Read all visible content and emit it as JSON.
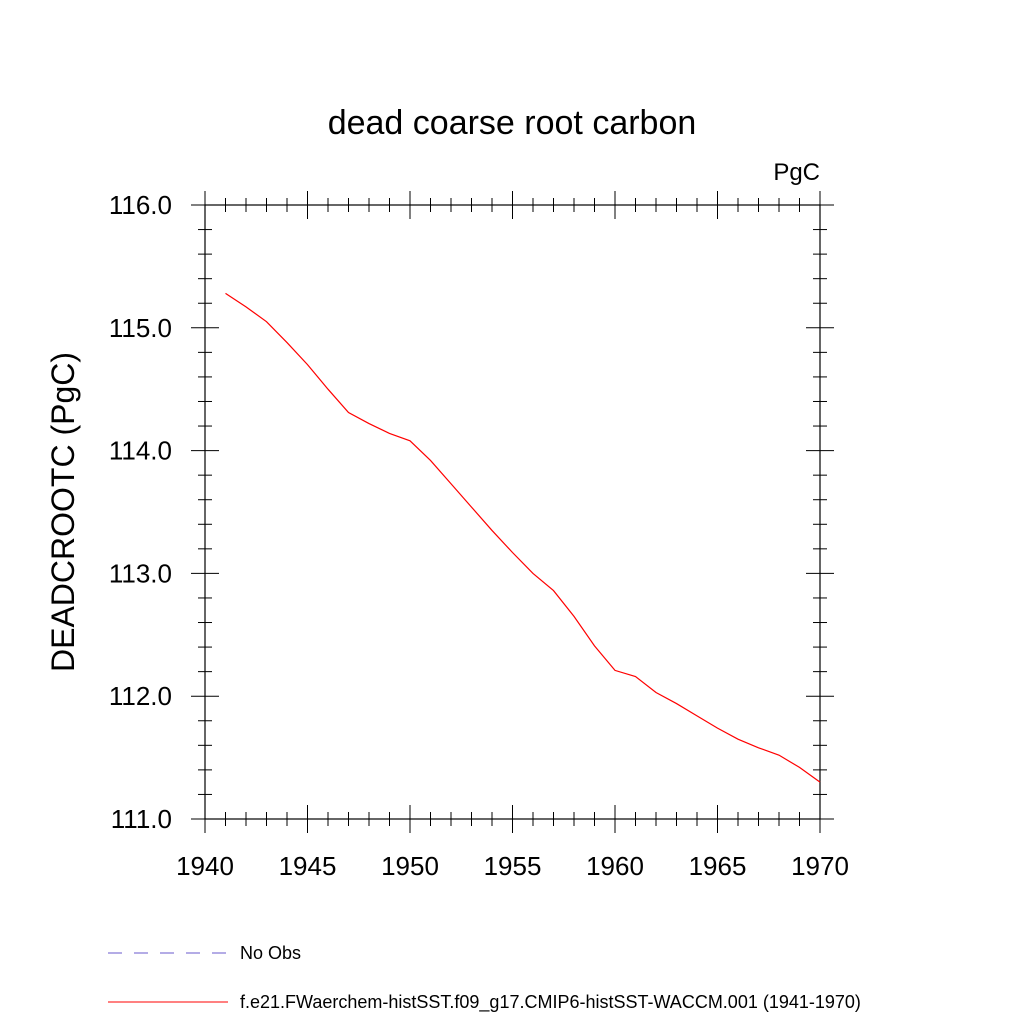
{
  "chart_data": {
    "type": "line",
    "title": "dead coarse root carbon",
    "units": "PgC",
    "xlabel": "",
    "ylabel": "DEADCROOTC  (PgC)",
    "xlim": [
      1940,
      1970
    ],
    "ylim": [
      111.0,
      116.0
    ],
    "x_ticks": [
      1940,
      1945,
      1950,
      1955,
      1960,
      1965,
      1970
    ],
    "x_tick_labels": [
      "1940",
      "1945",
      "1950",
      "1955",
      "1960",
      "1965",
      "1970"
    ],
    "y_ticks": [
      111.0,
      112.0,
      113.0,
      114.0,
      115.0,
      116.0
    ],
    "y_tick_labels": [
      "111.0",
      "112.0",
      "113.0",
      "114.0",
      "115.0",
      "116.0"
    ],
    "grid": false,
    "legend_position": "bottom",
    "series": [
      {
        "name": "f.e21.FWaerchem-histSST.f09_g17.CMIP6-histSST-WACCM.001 (1941-1970)",
        "color": "#ff0000",
        "style": "solid",
        "x": [
          1941,
          1942,
          1943,
          1944,
          1945,
          1946,
          1947,
          1948,
          1949,
          1950,
          1951,
          1952,
          1953,
          1954,
          1955,
          1956,
          1957,
          1958,
          1959,
          1960,
          1961,
          1962,
          1963,
          1964,
          1965,
          1966,
          1967,
          1968,
          1969,
          1970
        ],
        "y": [
          115.28,
          115.17,
          115.05,
          114.88,
          114.7,
          114.5,
          114.31,
          114.22,
          114.14,
          114.08,
          113.92,
          113.73,
          113.54,
          113.35,
          113.17,
          113.0,
          112.86,
          112.65,
          112.41,
          112.21,
          112.16,
          112.03,
          111.94,
          111.84,
          111.74,
          111.65,
          111.58,
          111.52,
          111.42,
          111.3
        ]
      }
    ],
    "legend": [
      {
        "label": "No Obs",
        "color": "#6a5acd",
        "style": "dashed"
      },
      {
        "label": "f.e21.FWaerchem-histSST.f09_g17.CMIP6-histSST-WACCM.001 (1941-1970)",
        "color": "#ff0000",
        "style": "solid"
      }
    ]
  }
}
